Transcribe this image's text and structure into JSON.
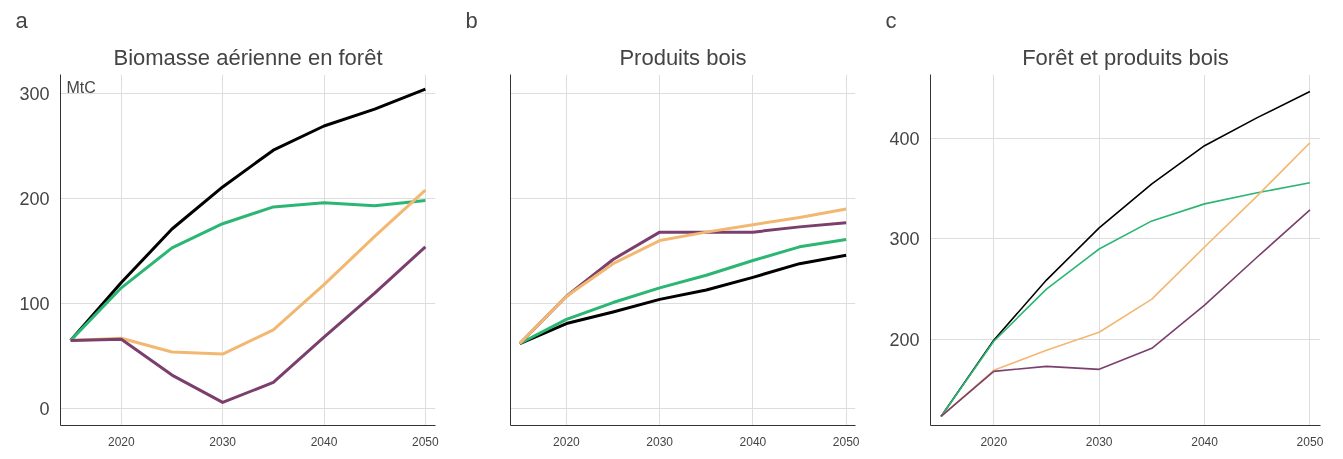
{
  "chart_data": [
    {
      "type": "line",
      "title": "Biomasse aérienne en forêt",
      "annotations": [
        "a"
      ],
      "ylabel": "MtC",
      "x": [
        2015,
        2020,
        2025,
        2030,
        2035,
        2040,
        2045,
        2050
      ],
      "xlim": [
        2014,
        2051
      ],
      "xticks": [
        2020,
        2030,
        2040,
        2050
      ],
      "ylim": [
        -16,
        318
      ],
      "yticks": [
        0,
        100,
        200,
        300
      ],
      "grid": true,
      "marker": "none",
      "line_style": "solid",
      "series": [
        {
          "color": "#000000",
          "values": [
            65,
            120,
            171,
            211,
            246,
            269,
            285,
            304
          ]
        },
        {
          "color": "#2bb673",
          "values": [
            65,
            115,
            153,
            176,
            192,
            196,
            193,
            198
          ]
        },
        {
          "color": "#f2b872",
          "values": [
            65,
            67,
            54,
            52,
            75,
            118,
            164,
            208
          ]
        },
        {
          "color": "#7b3f6e",
          "values": [
            65,
            66,
            32,
            6,
            25,
            68,
            110,
            154
          ]
        }
      ]
    },
    {
      "type": "line",
      "title": "Produits bois",
      "annotations": [
        "b"
      ],
      "x": [
        2015,
        2020,
        2025,
        2030,
        2035,
        2040,
        2045,
        2050
      ],
      "xlim": [
        2014,
        2051
      ],
      "xticks": [
        2020,
        2030,
        2040,
        2050
      ],
      "ylim": [
        -16,
        318
      ],
      "yticks": [
        0,
        100,
        200,
        300
      ],
      "tick_labels": "x",
      "grid": true,
      "marker": "none",
      "line_style": "solid",
      "series": [
        {
          "color": "#000000",
          "values": [
            62,
            81,
            92,
            104,
            113,
            125,
            138,
            146
          ]
        },
        {
          "color": "#2bb673",
          "values": [
            62,
            85,
            101,
            115,
            127,
            141,
            154,
            161
          ]
        },
        {
          "color": "#7b3f6e",
          "values": [
            62,
            107,
            142,
            168,
            168,
            168,
            173,
            177
          ]
        },
        {
          "color": "#f2b872",
          "values": [
            62,
            107,
            138,
            160,
            168,
            175,
            182,
            190
          ]
        }
      ]
    },
    {
      "type": "line",
      "title": "Forêt et produits bois",
      "annotations": [
        "c"
      ],
      "x": [
        2015,
        2020,
        2025,
        2030,
        2035,
        2040,
        2045,
        2050
      ],
      "xlim": [
        2014,
        2051
      ],
      "xticks": [
        2020,
        2030,
        2040,
        2050
      ],
      "ylim": [
        114,
        464
      ],
      "yticks": [
        200,
        300,
        400
      ],
      "grid": true,
      "marker": "none",
      "line_style": "solid",
      "series": [
        {
          "color": "#000000",
          "values": [
            123,
            199,
            259,
            311,
            355,
            393,
            421,
            447
          ]
        },
        {
          "color": "#2bb673",
          "values": [
            123,
            198,
            250,
            290,
            318,
            335,
            346,
            356
          ]
        },
        {
          "color": "#f2b872",
          "values": [
            123,
            169,
            189,
            207,
            240,
            292,
            343,
            396
          ]
        },
        {
          "color": "#7b3f6e",
          "values": [
            123,
            168,
            173,
            170,
            191,
            234,
            282,
            329
          ]
        }
      ]
    }
  ]
}
